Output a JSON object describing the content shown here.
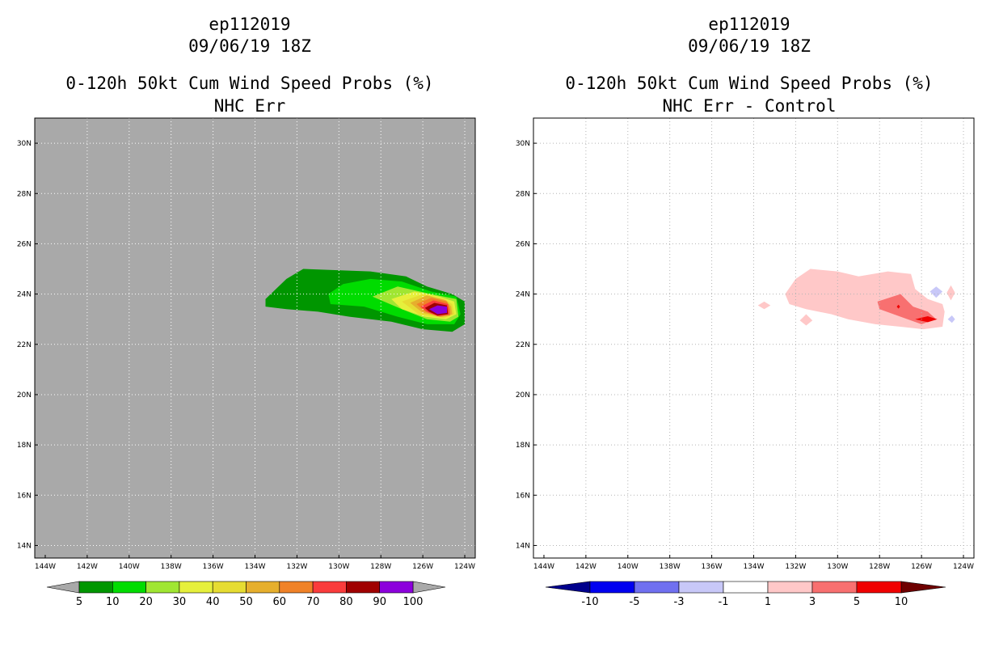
{
  "colors": {
    "land_gray": "#a9a9a9",
    "prob_fill": [
      "#009600",
      "#00dc00",
      "#a0e632",
      "#e6f03c",
      "#e6dc32",
      "#e6af2d",
      "#f08228",
      "#fa3c3c",
      "#a00000",
      "#8c00dc"
    ],
    "prob_ends": [
      "#a9a9a9",
      "#a9a9a9"
    ],
    "diff_fill": [
      "#00008c",
      "#0000f0",
      "#7070f0",
      "#c8c8f8",
      "#ffffff",
      "#ffc8c8",
      "#f87070",
      "#f00000",
      "#6e0000"
    ]
  },
  "chart_data": [
    {
      "type": "heatmap",
      "id": "prob",
      "title_lines": [
        "ep112019",
        "09/06/19 18Z",
        "0-120h 50kt Cum Wind Speed Probs (%)",
        "NHC Err"
      ],
      "x_range": [
        -144.5,
        -123.5
      ],
      "y_range": [
        13.5,
        31
      ],
      "x_ticks": [
        -144,
        -142,
        -140,
        -138,
        -136,
        -134,
        -132,
        -130,
        -128,
        -126,
        -124
      ],
      "x_tick_labels": [
        "144W",
        "142W",
        "140W",
        "138W",
        "136W",
        "134W",
        "132W",
        "130W",
        "128W",
        "126W",
        "124W"
      ],
      "y_ticks": [
        14,
        16,
        18,
        20,
        22,
        24,
        26,
        28,
        30
      ],
      "y_tick_labels": [
        "14N",
        "16N",
        "18N",
        "20N",
        "22N",
        "24N",
        "26N",
        "28N",
        "30N"
      ],
      "colorbar_levels": [
        "5",
        "10",
        "20",
        "30",
        "40",
        "50",
        "60",
        "70",
        "80",
        "90",
        "100"
      ],
      "contours": [
        {
          "level": 5,
          "color_index": 0,
          "polygon": [
            [
              -133.5,
              23.8
            ],
            [
              -132.5,
              24.6
            ],
            [
              -131.7,
              25.0
            ],
            [
              -128.5,
              24.9
            ],
            [
              -126.8,
              24.7
            ],
            [
              -125.8,
              24.3
            ],
            [
              -124.6,
              24.0
            ],
            [
              -124.0,
              23.7
            ],
            [
              -124.0,
              22.8
            ],
            [
              -124.6,
              22.5
            ],
            [
              -126.0,
              22.6
            ],
            [
              -127.5,
              22.9
            ],
            [
              -129.5,
              23.1
            ],
            [
              -131.0,
              23.3
            ],
            [
              -132.5,
              23.4
            ],
            [
              -133.5,
              23.5
            ]
          ]
        },
        {
          "level": 10,
          "color_index": 1,
          "polygon": [
            [
              -130.5,
              24.0
            ],
            [
              -129.8,
              24.4
            ],
            [
              -128.5,
              24.6
            ],
            [
              -127.0,
              24.5
            ],
            [
              -125.6,
              24.1
            ],
            [
              -124.4,
              23.9
            ],
            [
              -124.2,
              23.2
            ],
            [
              -124.5,
              22.8
            ],
            [
              -125.8,
              22.8
            ],
            [
              -127.2,
              23.1
            ],
            [
              -128.8,
              23.5
            ],
            [
              -130.4,
              23.6
            ]
          ]
        },
        {
          "level": 20,
          "color_index": 2,
          "polygon": [
            [
              -128.4,
              23.9
            ],
            [
              -127.2,
              24.3
            ],
            [
              -125.6,
              24.0
            ],
            [
              -124.4,
              23.8
            ],
            [
              -124.3,
              23.1
            ],
            [
              -124.7,
              22.9
            ],
            [
              -125.8,
              23.0
            ],
            [
              -127.0,
              23.4
            ]
          ]
        },
        {
          "level": 30,
          "color_index": 3,
          "polygon": [
            [
              -127.5,
              23.8
            ],
            [
              -126.4,
              24.1
            ],
            [
              -125.2,
              23.9
            ],
            [
              -124.5,
              23.7
            ],
            [
              -124.4,
              23.2
            ],
            [
              -124.9,
              23.0
            ],
            [
              -125.9,
              23.1
            ],
            [
              -127.0,
              23.4
            ]
          ]
        },
        {
          "level": 40,
          "color_index": 4,
          "polygon": [
            [
              -127.0,
              23.7
            ],
            [
              -126.0,
              24.0
            ],
            [
              -125.0,
              23.8
            ],
            [
              -124.6,
              23.6
            ],
            [
              -124.5,
              23.2
            ],
            [
              -125.0,
              23.05
            ],
            [
              -126.2,
              23.2
            ]
          ]
        },
        {
          "level": 50,
          "color_index": 5,
          "polygon": [
            [
              -126.6,
              23.65
            ],
            [
              -125.8,
              23.95
            ],
            [
              -124.9,
              23.75
            ],
            [
              -124.65,
              23.5
            ],
            [
              -124.6,
              23.2
            ],
            [
              -125.1,
              23.1
            ],
            [
              -126.0,
              23.25
            ]
          ]
        },
        {
          "level": 60,
          "color_index": 6,
          "polygon": [
            [
              -126.3,
              23.6
            ],
            [
              -125.6,
              23.85
            ],
            [
              -124.85,
              23.7
            ],
            [
              -124.7,
              23.4
            ],
            [
              -124.7,
              23.15
            ],
            [
              -125.2,
              23.1
            ],
            [
              -125.9,
              23.3
            ]
          ]
        },
        {
          "level": 70,
          "color_index": 7,
          "polygon": [
            [
              -126.1,
              23.5
            ],
            [
              -125.5,
              23.75
            ],
            [
              -124.8,
              23.6
            ],
            [
              -124.75,
              23.2
            ],
            [
              -125.3,
              23.12
            ],
            [
              -125.8,
              23.3
            ]
          ]
        },
        {
          "level": 80,
          "color_index": 8,
          "polygon": [
            [
              -125.9,
              23.45
            ],
            [
              -125.45,
              23.65
            ],
            [
              -124.85,
              23.55
            ],
            [
              -124.8,
              23.2
            ],
            [
              -125.3,
              23.15
            ],
            [
              -125.7,
              23.3
            ]
          ]
        },
        {
          "level": 90,
          "color_index": 9,
          "polygon": [
            [
              -125.7,
              23.4
            ],
            [
              -125.3,
              23.55
            ],
            [
              -124.85,
              23.5
            ],
            [
              -124.85,
              23.25
            ],
            [
              -125.3,
              23.2
            ]
          ]
        }
      ]
    },
    {
      "type": "heatmap",
      "id": "diff",
      "title_lines": [
        "ep112019",
        "09/06/19 18Z",
        "0-120h 50kt Cum Wind Speed Probs (%)",
        "NHC Err - Control"
      ],
      "x_range": [
        -144.5,
        -123.5
      ],
      "y_range": [
        13.5,
        31
      ],
      "x_ticks": [
        -144,
        -142,
        -140,
        -138,
        -136,
        -134,
        -132,
        -130,
        -128,
        -126,
        -124
      ],
      "x_tick_labels": [
        "144W",
        "142W",
        "140W",
        "138W",
        "136W",
        "134W",
        "132W",
        "130W",
        "128W",
        "126W",
        "124W"
      ],
      "y_ticks": [
        14,
        16,
        18,
        20,
        22,
        24,
        26,
        28,
        30
      ],
      "y_tick_labels": [
        "14N",
        "16N",
        "18N",
        "20N",
        "22N",
        "24N",
        "26N",
        "28N",
        "30N"
      ],
      "colorbar_levels": [
        "-10",
        "-5",
        "-3",
        "-1",
        "1",
        "3",
        "5",
        "10"
      ],
      "contours": [
        {
          "level": 1,
          "color_index": 5,
          "polygon": [
            [
              -132.5,
              24.0
            ],
            [
              -132.0,
              24.6
            ],
            [
              -131.3,
              25.0
            ],
            [
              -130.0,
              24.9
            ],
            [
              -129.0,
              24.7
            ],
            [
              -127.6,
              24.9
            ],
            [
              -126.5,
              24.8
            ],
            [
              -126.3,
              24.2
            ],
            [
              -125.7,
              23.8
            ],
            [
              -125.0,
              23.6
            ],
            [
              -124.9,
              23.3
            ],
            [
              -125.0,
              22.7
            ],
            [
              -125.9,
              22.6
            ],
            [
              -127.0,
              22.7
            ],
            [
              -128.2,
              22.8
            ],
            [
              -129.5,
              23.0
            ],
            [
              -130.3,
              23.2
            ],
            [
              -131.5,
              23.4
            ],
            [
              -132.3,
              23.6
            ]
          ]
        },
        {
          "level": 1,
          "color_index": 5,
          "polygon": [
            [
              -131.8,
              22.95
            ],
            [
              -131.5,
              23.2
            ],
            [
              -131.2,
              22.95
            ],
            [
              -131.5,
              22.75
            ]
          ]
        },
        {
          "level": 1,
          "color_index": 5,
          "polygon": [
            [
              -133.8,
              23.55
            ],
            [
              -133.5,
              23.7
            ],
            [
              -133.2,
              23.55
            ],
            [
              -133.5,
              23.4
            ]
          ]
        },
        {
          "level": 1,
          "color_index": 5,
          "polygon": [
            [
              -124.8,
              24.05
            ],
            [
              -124.6,
              24.35
            ],
            [
              -124.4,
              24.05
            ],
            [
              -124.6,
              23.75
            ]
          ]
        },
        {
          "level": 3,
          "color_index": 6,
          "polygon": [
            [
              -128.1,
              23.7
            ],
            [
              -127.0,
              24.0
            ],
            [
              -126.4,
              23.5
            ],
            [
              -125.7,
              23.3
            ],
            [
              -125.3,
              23.0
            ],
            [
              -126.0,
              22.8
            ],
            [
              -127.0,
              23.1
            ],
            [
              -128.0,
              23.4
            ]
          ]
        },
        {
          "level": 5,
          "color_index": 7,
          "polygon": [
            [
              -126.3,
              23.0
            ],
            [
              -125.7,
              23.12
            ],
            [
              -125.25,
              23.0
            ],
            [
              -125.7,
              22.88
            ]
          ]
        },
        {
          "level": 5,
          "color_index": 7,
          "polygon": [
            [
              -127.18,
              23.5
            ],
            [
              -127.1,
              23.58
            ],
            [
              -127.02,
              23.5
            ],
            [
              -127.1,
              23.42
            ]
          ]
        },
        {
          "level": -1,
          "color_index": 3,
          "polygon": [
            [
              -125.6,
              24.1
            ],
            [
              -125.3,
              24.3
            ],
            [
              -125.0,
              24.1
            ],
            [
              -125.3,
              23.85
            ]
          ]
        },
        {
          "level": -1,
          "color_index": 3,
          "polygon": [
            [
              -124.75,
              23.0
            ],
            [
              -124.55,
              23.15
            ],
            [
              -124.4,
              23.0
            ],
            [
              -124.55,
              22.85
            ]
          ]
        }
      ]
    }
  ]
}
